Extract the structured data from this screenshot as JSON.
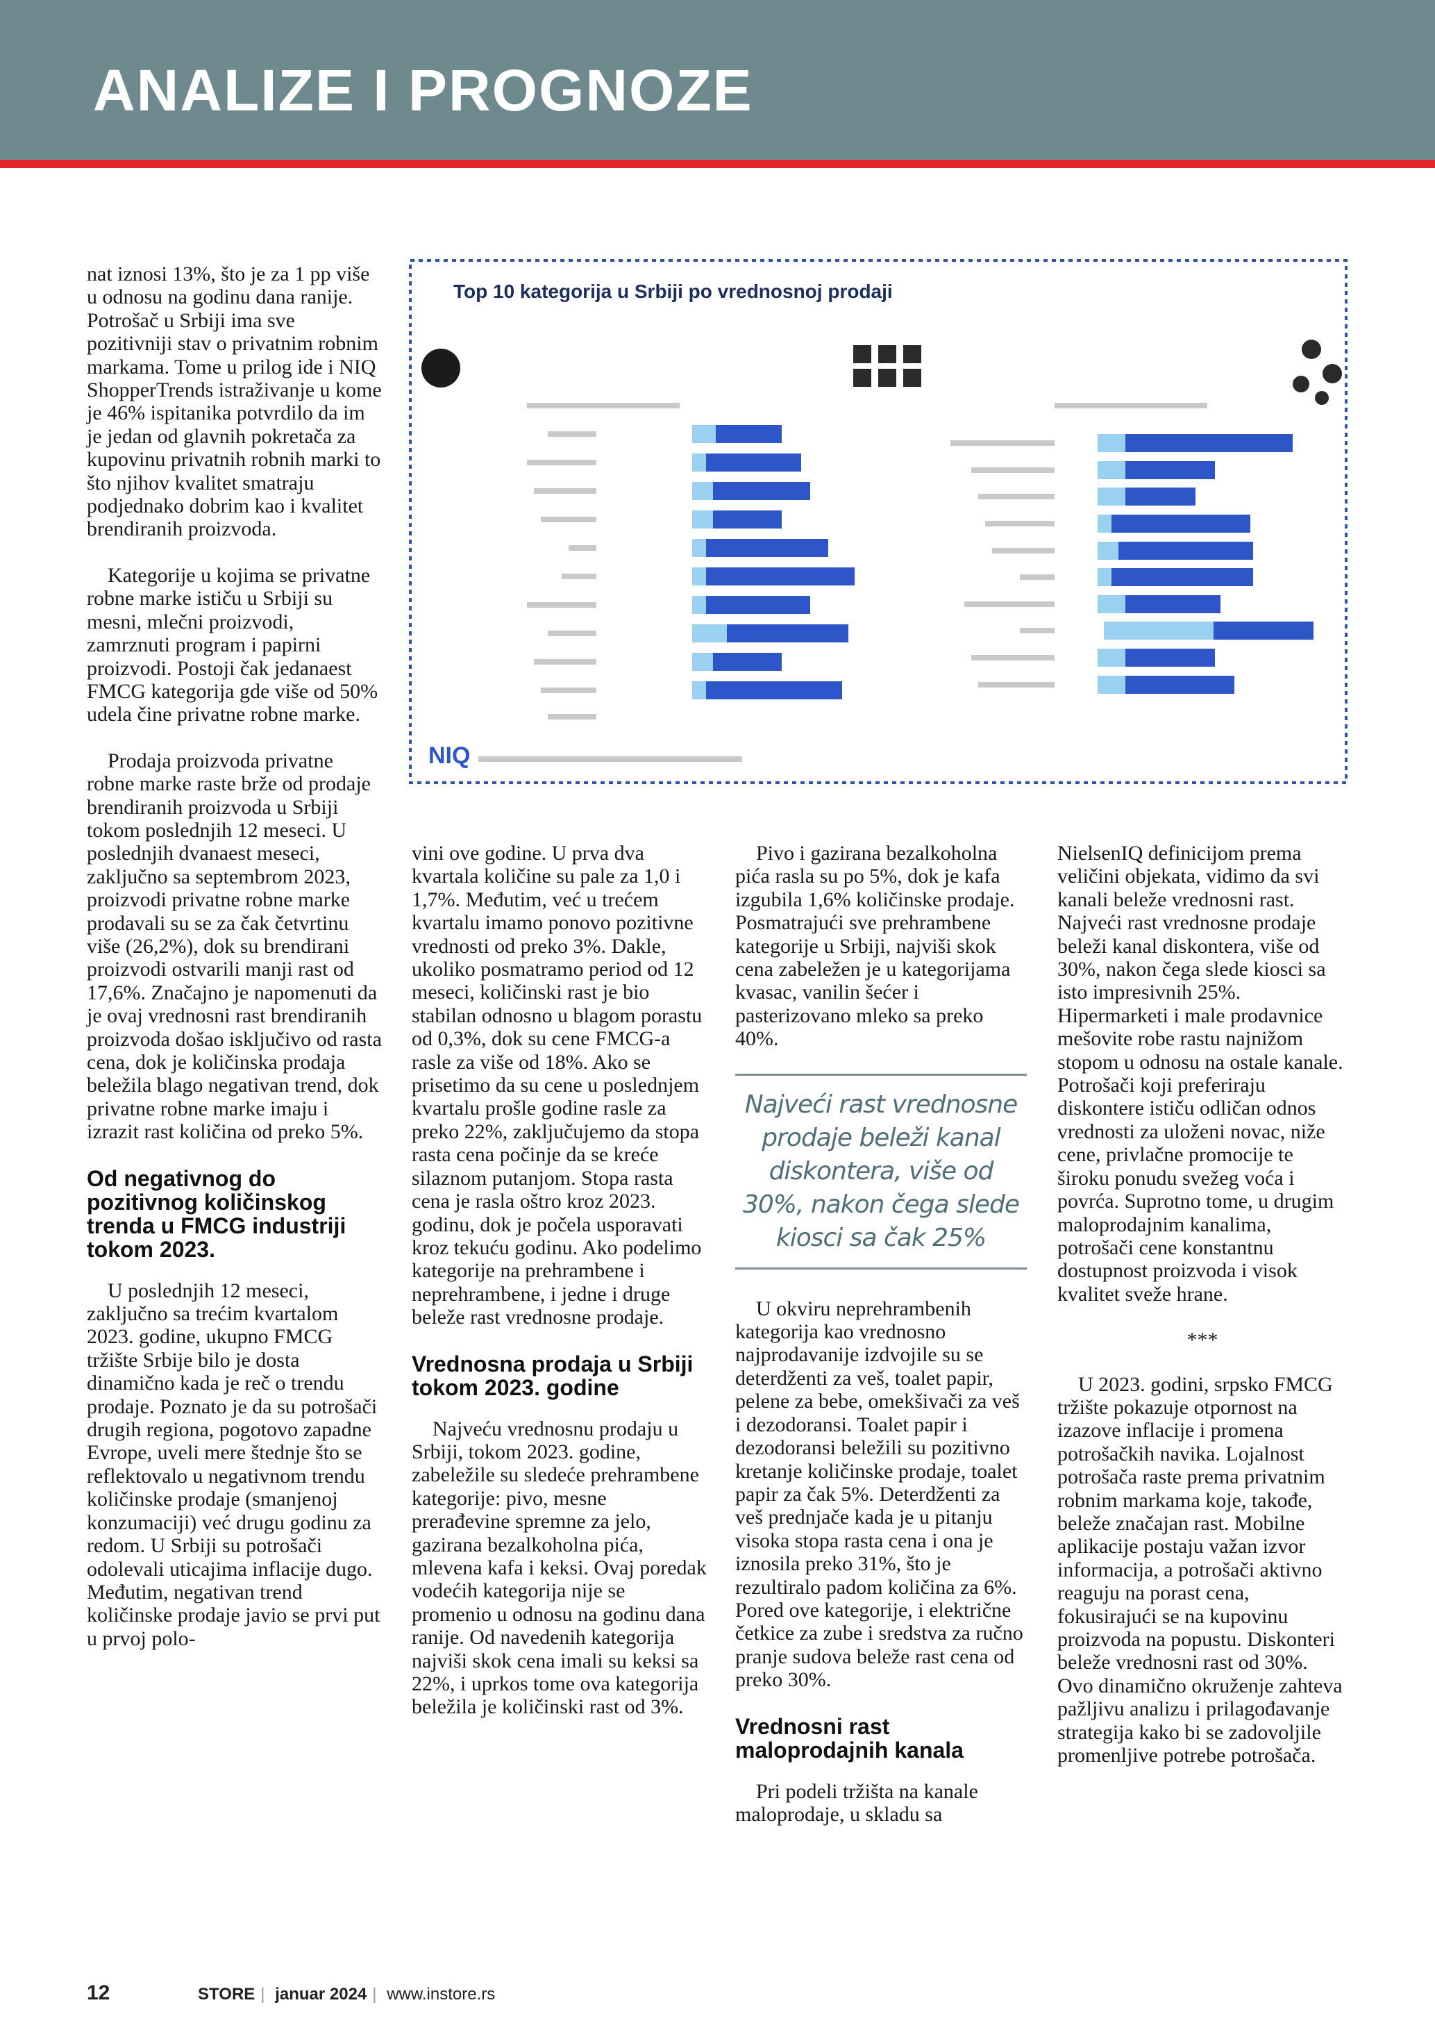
{
  "header": {
    "title": "ANALIZE I PROGNOZE"
  },
  "figure": {
    "title": "Top 10 kategorija u Srbiji po vrednosnoj prodaji",
    "logo": "NIQ"
  },
  "columns": [
    {
      "blocks": [
        {
          "paragraph": "nat iznosi 13%, što je za 1 pp više u odnosu na godinu dana ranije. Potrošač u Srbiji ima sve pozitivniji stav o privatnim robnim markama. Tome u prilog ide i NIQ ShopperTrends istraživanje u kome je 46% ispitanika potvrdilo da im je jedan od glavnih pokretača za kupovinu privatnih robnih marki to što njihov kvalitet smatraju podjednako dobrim kao i kvalitet brendiranih proizvoda."
        },
        {
          "paragraph": "Kategorije u kojima se privatne robne marke ističu u Srbiji su mesni, mlečni proizvodi, zamrznuti program i papirni proizvodi. Postoji čak jedanaest FMCG kategorija gde više od 50% udela čine privatne robne marke."
        },
        {
          "paragraph": "Prodaja proizvoda privatne robne marke raste brže od prodaje brendiranih proizvoda u Srbiji tokom poslednjih 12 meseci. U poslednjih dvanaest meseci, zaključno sa septembrom 2023, proizvodi privatne robne marke prodavali su se za čak četvrtinu više (26,2%), dok su brendirani proizvodi ostvarili manji rast od 17,6%. Značajno je napomenuti da je ovaj vrednosni rast brendiranih proizvoda došao isključivo od rasta cena, dok je količinska prodaja beležila blago negativan trend, dok privatne robne marke imaju i izrazit rast količina od preko 5%."
        },
        {
          "heading": "Od negativnog do pozitivnog količinskog trenda u FMCG industriji tokom 2023."
        },
        {
          "paragraph": "U poslednjih 12 meseci, zaključno sa trećim kvartalom 2023. godine, ukupno FMCG tržište Srbije bilo je dosta dinamično kada je reč o trendu prodaje. Poznato je da su potrošači drugih regiona, pogotovo zapadne Evrope, uveli mere štednje što se reflektovalo u negativnom trendu količinske prodaje (smanjenoj konzumaciji) već drugu godinu za redom. U Srbiji su potrošači odolevali uticajima inflacije dugo. Međutim, negativan trend količinske prodaje javio se prvi put u prvoj polo-"
        }
      ]
    },
    {
      "blocks": [
        {
          "paragraph": "vini ove godine. U prva dva kvartala količine su pale za 1,0 i 1,7%. Međutim, već u trećem kvartalu imamo ponovo pozitivne vrednosti od preko 3%. Dakle, ukoliko posmatramo period od 12 meseci, količinski rast je bio stabilan odnosno u blagom porastu od 0,3%, dok su cene FMCG-a rasle za više od 18%. Ako se prisetimo da su cene u poslednjem kvartalu prošle godine rasle za preko 22%, zaključujemo da stopa rasta cena počinje da se kreće silaznom putanjom. Stopa rasta cena je rasla oštro kroz 2023. godinu, dok je počela usporavati kroz tekuću godinu. Ako podelimo kategorije na prehrambene i neprehrambene, i jedne i druge beleže rast vrednosne prodaje."
        },
        {
          "heading": "Vrednosna prodaja u Srbiji tokom 2023. godine"
        },
        {
          "paragraph": "Najveću vrednosnu prodaju u Srbiji, tokom 2023. godine, zabeležile su sledeće prehrambene kategorije: pivo, mesne prerađevine spremne za jelo, gazirana bezalkoholna pića, mlevena kafa i keksi. Ovaj poredak vodećih kategorija nije se promenio u odnosu na godinu dana ranije. Od navedenih kategorija najviši skok cena imali su keksi sa 22%, i uprkos tome ova kategorija beležila je količinski rast od 3%."
        }
      ]
    },
    {
      "blocks": [
        {
          "paragraph": "Pivo i gazirana bezalkoholna pića rasla su po 5%, dok je kafa izgubila 1,6% količinske prodaje. Posmatrajući sve prehrambene kategorije u Srbiji, najviši skok cena zabeležen je u kategorijama kvasac, vanilin šećer i pasterizovano mleko sa preko 40%."
        },
        {
          "quote": "Najveći rast vrednosne prodaje beleži kanal diskontera, više od 30%, nakon čega slede kiosci sa čak 25%"
        },
        {
          "paragraph": "U okviru neprehrambenih kategorija kao vrednosno najprodavanije izdvojile su se deterdženti za veš, toalet papir, pelene za bebe, omekšivači za veš i dezodoransi. Toalet papir i dezodoransi beležili su pozitivno kretanje količinske prodaje, toalet papir za čak 5%. Deterdženti za veš prednjače kada je u pitanju visoka stopa rasta cena i ona je iznosila preko 31%, što je rezultiralo padom količina za 6%. Pored ove kategorije, i električne četkice za zube i sredstva za ručno pranje sudova beleže rast cena od preko 30%."
        },
        {
          "heading": "Vrednosni rast maloprodajnih kanala"
        },
        {
          "paragraph": "Pri podeli tržišta na kanale maloprodaje, u skladu sa"
        }
      ]
    },
    {
      "blocks": [
        {
          "paragraph": "NielsenIQ definicijom prema veličini objekata, vidimo da svi kanali beleže vrednosni rast. Najveći rast vrednosne prodaje beleži kanal diskontera, više od 30%, nakon čega slede kiosci sa isto impresivnih 25%. Hipermarketi i male prodavnice mešovite robe rastu najnižom stopom u odnosu na ostale kanale. Potrošači koji preferiraju diskontere ističu odličan odnos vrednosti za uloženi novac, niže cene, privlačne promocije te široku ponudu svežeg voća i povrća. Suprotno tome, u drugim maloprodajnim kanalima, potrošači cene konstantnu dostupnost proizvoda i visok kvalitet sveže hrane."
        },
        {
          "separator": "***"
        },
        {
          "paragraph": "U 2023. godini, srpsko FMCG tržište pokazuje otpornost na izazove inflacije i promena potrošačkih navika. Lojalnost potrošača raste prema privatnim robnim markama koje, takođe, beleže značajan rast. Mobilne aplikacije postaju važan izvor informacija, a potrošači aktivno reaguju na porast cena, fokusirajući se na kupovinu proizvoda na popustu. Diskonteri beleže vrednosni rast od 30%. Ovo dinamično okruženje zahteva pažljivu analizu i prilagođavanje strategija kako bi se zadovoljile promenljive potrebe potrošača."
        }
      ]
    }
  ],
  "footer": {
    "page": "12",
    "brand": "STORE",
    "issue": "januar 2024",
    "url": "www.instore.rs"
  }
}
